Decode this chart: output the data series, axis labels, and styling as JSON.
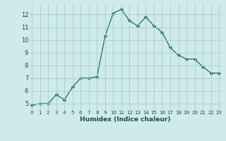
{
  "x": [
    0,
    1,
    2,
    3,
    4,
    5,
    6,
    7,
    8,
    9,
    10,
    11,
    12,
    13,
    14,
    15,
    16,
    17,
    18,
    19,
    20,
    21,
    22,
    23
  ],
  "y": [
    4.9,
    5.0,
    5.0,
    5.7,
    5.3,
    6.3,
    7.0,
    7.0,
    7.1,
    10.3,
    12.1,
    12.4,
    11.5,
    11.1,
    11.8,
    11.1,
    10.6,
    9.4,
    8.8,
    8.5,
    8.5,
    7.9,
    7.4,
    7.4
  ],
  "xlabel": "Humidex (Indice chaleur)",
  "ylim": [
    4.5,
    12.8
  ],
  "xlim": [
    -0.3,
    23.3
  ],
  "yticks": [
    5,
    6,
    7,
    8,
    9,
    10,
    11,
    12
  ],
  "xticks": [
    0,
    1,
    2,
    3,
    4,
    5,
    6,
    7,
    8,
    9,
    10,
    11,
    12,
    13,
    14,
    15,
    16,
    17,
    18,
    19,
    20,
    21,
    22,
    23
  ],
  "bg_color": "#ceeaea",
  "grid_color": "#aacccc",
  "line_color": "#1a6b6b",
  "marker_color": "#1a6b6b",
  "xlabel_color": "#1a4a4a",
  "tick_color": "#1a4a4a"
}
